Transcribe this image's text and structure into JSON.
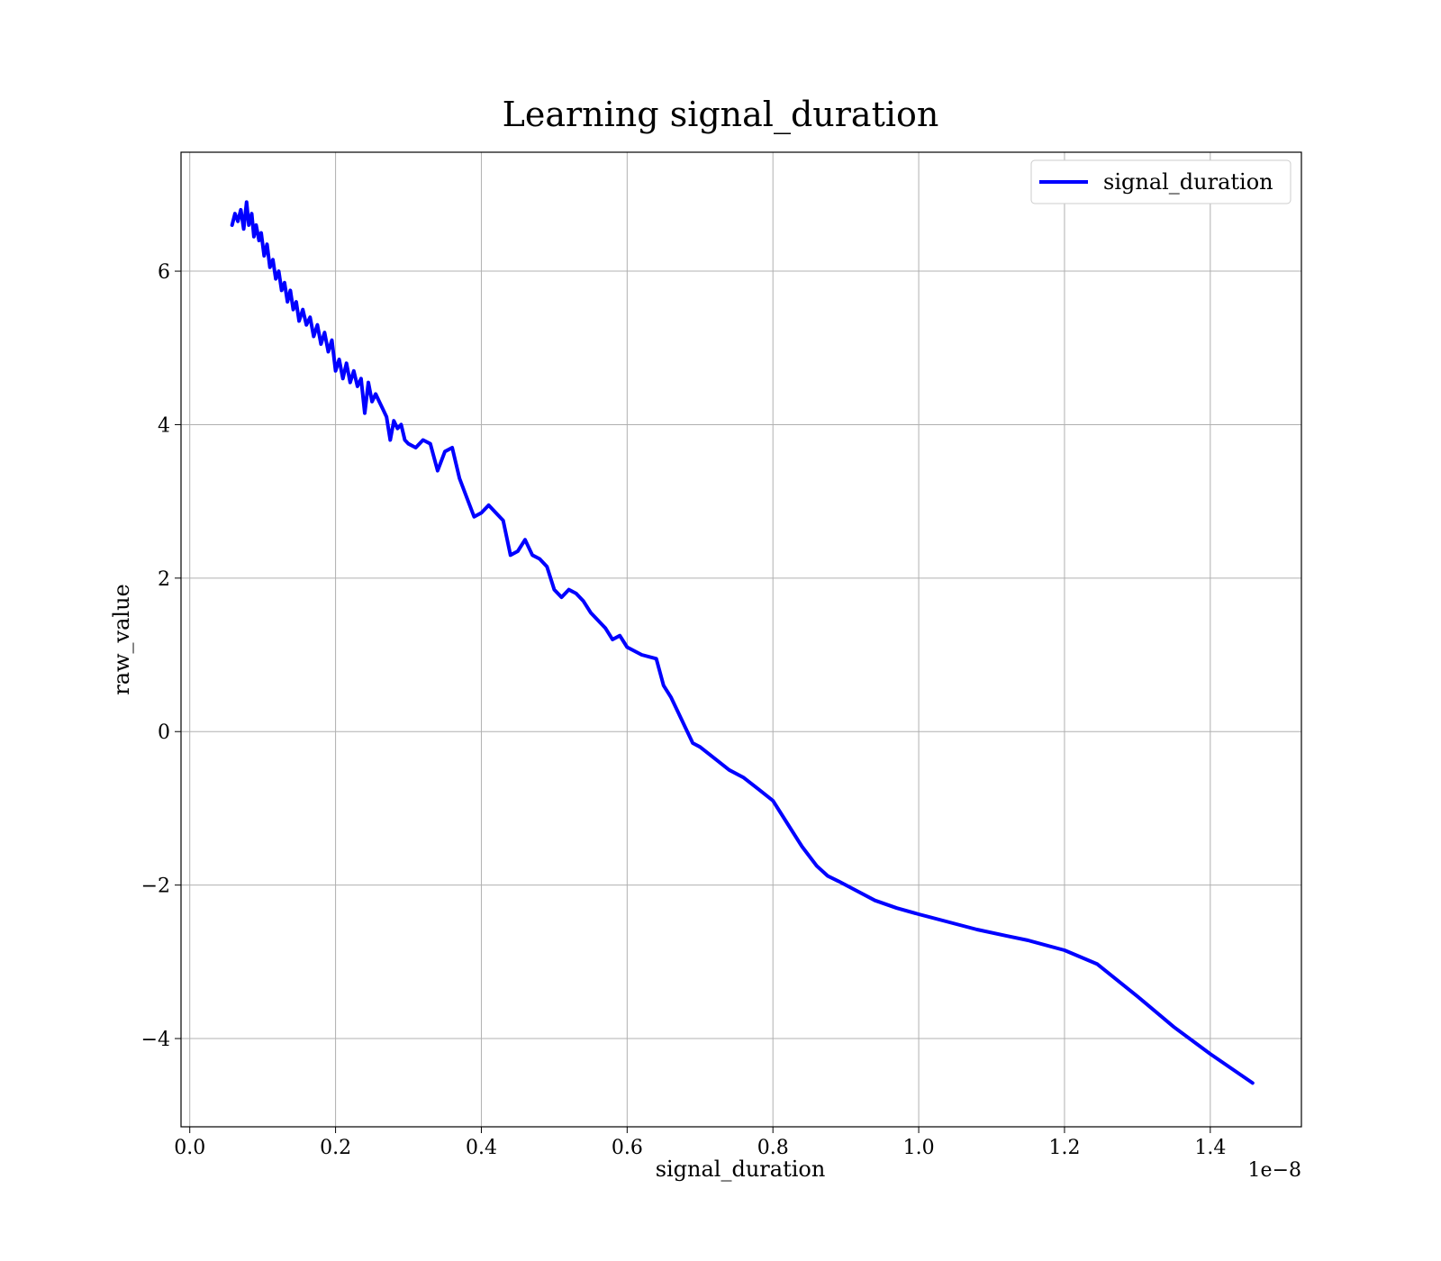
{
  "chart_data": {
    "type": "line",
    "title": "Learning signal_duration",
    "xlabel": "signal_duration",
    "ylabel": "raw_value",
    "x_offset_label": "1e−8",
    "xlim": [
      -0.012,
      1.525
    ],
    "ylim": [
      -5.15,
      7.55
    ],
    "xticks": [
      0.0,
      0.2,
      0.4,
      0.6,
      0.8,
      1.0,
      1.2,
      1.4
    ],
    "xtick_labels": [
      "0.0",
      "0.2",
      "0.4",
      "0.6",
      "0.8",
      "1.0",
      "1.2",
      "1.4"
    ],
    "yticks": [
      -4,
      -2,
      0,
      2,
      4,
      6
    ],
    "ytick_labels": [
      "−4",
      "−2",
      "0",
      "2",
      "4",
      "6"
    ],
    "grid": true,
    "legend_position": "top-right",
    "series": [
      {
        "name": "signal_duration",
        "color": "#0000ff",
        "x": [
          0.058,
          0.062,
          0.066,
          0.07,
          0.074,
          0.078,
          0.081,
          0.085,
          0.088,
          0.091,
          0.095,
          0.098,
          0.102,
          0.106,
          0.11,
          0.114,
          0.118,
          0.122,
          0.126,
          0.13,
          0.134,
          0.138,
          0.142,
          0.146,
          0.15,
          0.155,
          0.16,
          0.165,
          0.17,
          0.175,
          0.18,
          0.185,
          0.19,
          0.195,
          0.2,
          0.205,
          0.21,
          0.215,
          0.22,
          0.225,
          0.23,
          0.235,
          0.24,
          0.245,
          0.25,
          0.255,
          0.26,
          0.265,
          0.27,
          0.275,
          0.28,
          0.285,
          0.29,
          0.295,
          0.3,
          0.31,
          0.32,
          0.33,
          0.34,
          0.35,
          0.36,
          0.37,
          0.38,
          0.39,
          0.4,
          0.41,
          0.42,
          0.43,
          0.44,
          0.45,
          0.46,
          0.47,
          0.48,
          0.49,
          0.5,
          0.51,
          0.52,
          0.53,
          0.54,
          0.55,
          0.56,
          0.57,
          0.58,
          0.59,
          0.6,
          0.62,
          0.64,
          0.65,
          0.66,
          0.67,
          0.68,
          0.69,
          0.7,
          0.72,
          0.74,
          0.76,
          0.78,
          0.8,
          0.82,
          0.84,
          0.86,
          0.875,
          0.89,
          0.91,
          0.94,
          0.97,
          1.0,
          1.04,
          1.08,
          1.12,
          1.15,
          1.2,
          1.245,
          1.3,
          1.35,
          1.4,
          1.458
        ],
        "y": [
          6.6,
          6.75,
          6.65,
          6.8,
          6.55,
          6.9,
          6.6,
          6.75,
          6.45,
          6.6,
          6.4,
          6.5,
          6.2,
          6.35,
          6.05,
          6.15,
          5.9,
          6.0,
          5.75,
          5.85,
          5.6,
          5.75,
          5.5,
          5.6,
          5.35,
          5.5,
          5.3,
          5.4,
          5.15,
          5.3,
          5.05,
          5.2,
          4.95,
          5.1,
          4.7,
          4.85,
          4.6,
          4.8,
          4.55,
          4.7,
          4.5,
          4.6,
          4.15,
          4.55,
          4.3,
          4.4,
          4.3,
          4.2,
          4.1,
          3.8,
          4.05,
          3.95,
          4.0,
          3.8,
          3.75,
          3.7,
          3.8,
          3.75,
          3.4,
          3.65,
          3.7,
          3.3,
          3.05,
          2.8,
          2.85,
          2.95,
          2.85,
          2.75,
          2.3,
          2.35,
          2.5,
          2.3,
          2.25,
          2.15,
          1.85,
          1.75,
          1.85,
          1.8,
          1.7,
          1.55,
          1.45,
          1.35,
          1.2,
          1.25,
          1.1,
          1.0,
          0.95,
          0.6,
          0.45,
          0.25,
          0.05,
          -0.15,
          -0.2,
          -0.35,
          -0.5,
          -0.6,
          -0.75,
          -0.9,
          -1.2,
          -1.5,
          -1.75,
          -1.88,
          -1.95,
          -2.05,
          -2.2,
          -2.3,
          -2.38,
          -2.48,
          -2.58,
          -2.66,
          -2.72,
          -2.85,
          -3.03,
          -3.45,
          -3.85,
          -4.2,
          -4.58
        ]
      }
    ]
  }
}
